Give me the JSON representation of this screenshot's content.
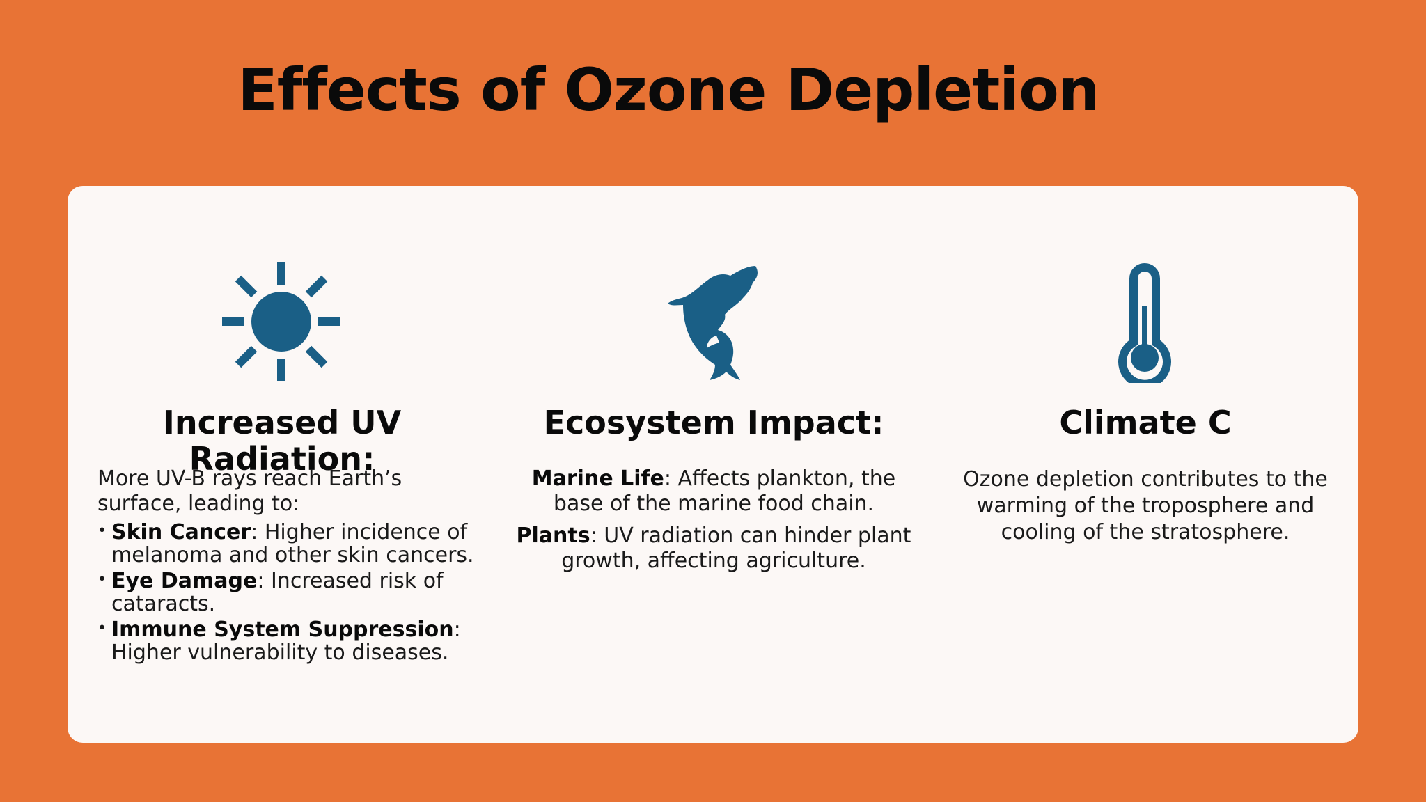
{
  "slide": {
    "title": "Effects of Ozone Depletion"
  },
  "colors": {
    "background": "#E87335",
    "card": "#FCF8F6",
    "icon": "#1A5F86",
    "text": "#111111"
  },
  "columns": [
    {
      "icon": "sun-icon",
      "heading": "Increased UV Radiation:",
      "intro": "More UV-B rays reach Earth’s surface, leading to:",
      "bullets": [
        {
          "term": "Skin Cancer",
          "text": ": Higher incidence of melanoma and other skin cancers."
        },
        {
          "term": "Eye Damage",
          "text": ": Increased risk of cataracts."
        },
        {
          "term": "Immune System Suppression",
          "text": ": Higher vulnerability to diseases."
        }
      ]
    },
    {
      "icon": "whale-icon",
      "heading": "Ecosystem Impact:",
      "items": [
        {
          "term": "Marine Life",
          "text": ": Affects plankton, the base of the marine food chain."
        },
        {
          "term": "Plants",
          "text": ": UV radiation can hinder plant growth, affecting agriculture."
        }
      ]
    },
    {
      "icon": "thermometer-icon",
      "heading": "Climate C",
      "body": "Ozone depletion contributes to the warming of the troposphere and cooling of the stratosphere."
    }
  ]
}
